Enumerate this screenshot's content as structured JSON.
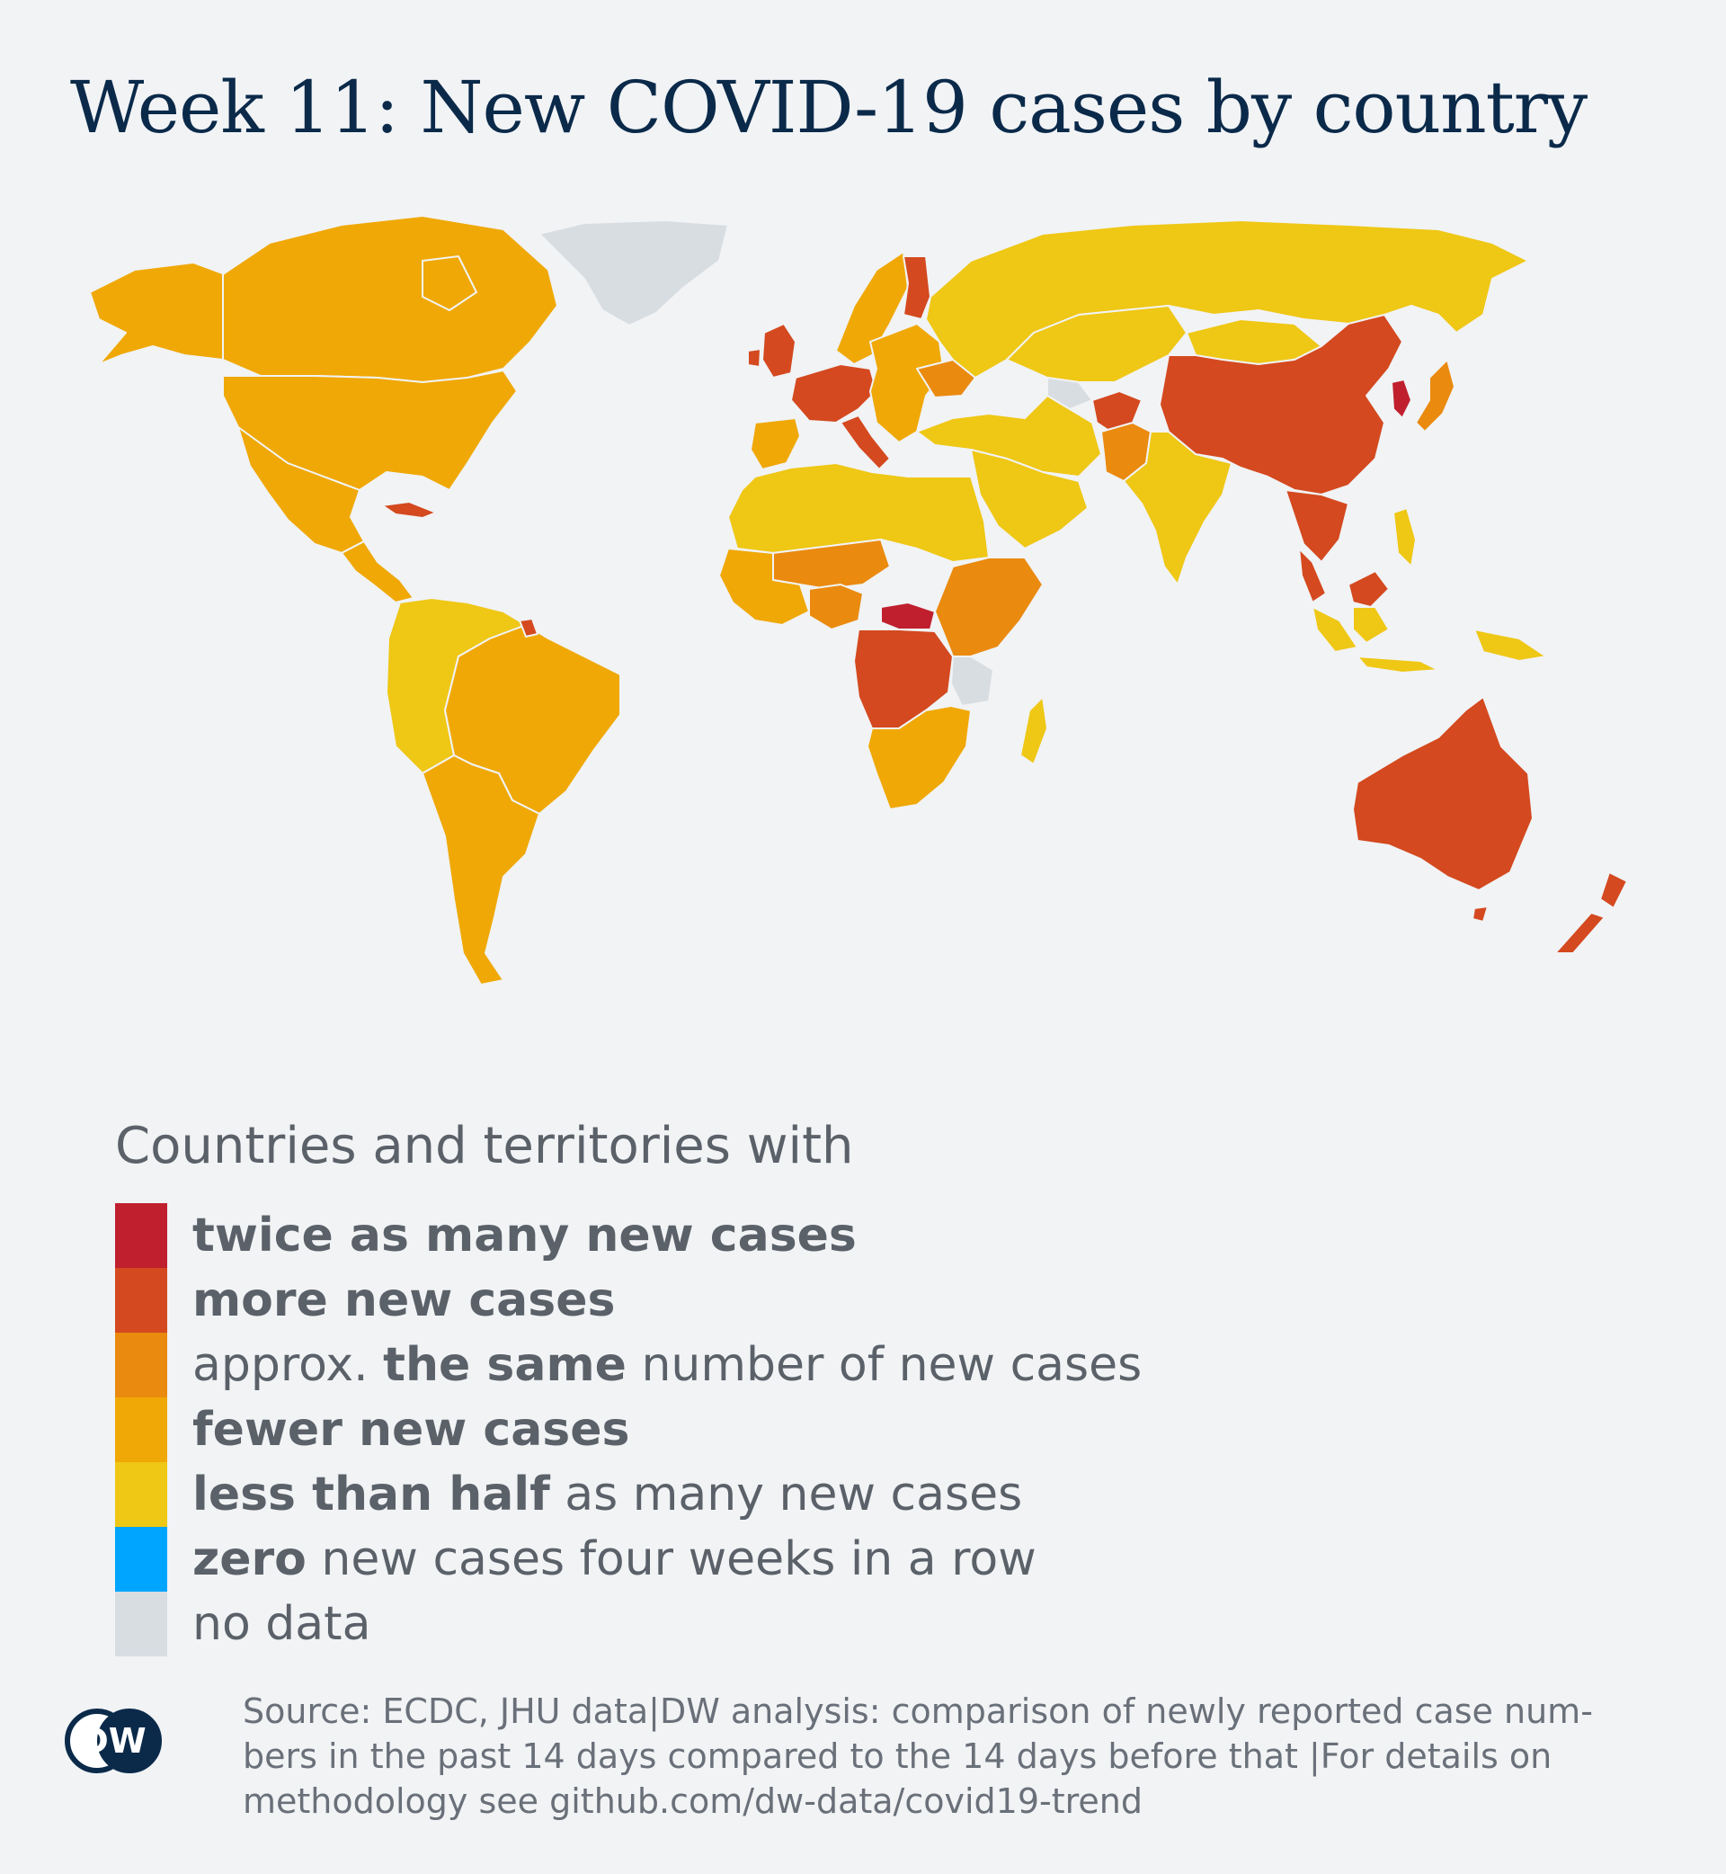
{
  "title": "Week 11: New COVID-19 cases by country",
  "colors": {
    "background": "#f1f3f5",
    "twice": "#c0202e",
    "more": "#d4491f",
    "same": "#ea8a0f",
    "fewer": "#f0a806",
    "less_half": "#efc715",
    "zero": "#00a5ff",
    "no_data": "#d8dde2",
    "border": "#f1f3f5",
    "title": "#0b2a4a"
  },
  "legend": {
    "heading": "Countries and territories with",
    "items": [
      {
        "key": "twice",
        "color": "#c0202e",
        "bold": "twice as many new cases",
        "rest": ""
      },
      {
        "key": "more",
        "color": "#d4491f",
        "bold": "more new cases",
        "rest": ""
      },
      {
        "key": "same",
        "color": "#ea8a0f",
        "pre": "approx. ",
        "bold": "the same",
        "rest": " number of new cases"
      },
      {
        "key": "fewer",
        "color": "#f0a806",
        "bold": "fewer new cases",
        "rest": ""
      },
      {
        "key": "less_half",
        "color": "#efc715",
        "bold": "less than half",
        "rest": " as many new cases"
      },
      {
        "key": "zero",
        "color": "#00a5ff",
        "bold": "zero",
        "rest": " new cases four weeks in a row"
      },
      {
        "key": "no_data",
        "color": "#d8dde2",
        "bold": "",
        "rest": "no data"
      }
    ]
  },
  "source": {
    "line1": "Source: ECDC, JHU data|DW analysis: comparison of newly reported case num-",
    "line2": "bers in the past 14 days compared to the 14 days before that |For details on",
    "line3": "methodology see github.com/dw-data/covid19-trend"
  },
  "logo": {
    "text": "DW"
  },
  "map": {
    "regions": [
      {
        "name": "canada",
        "category": "fewer"
      },
      {
        "name": "usa",
        "category": "fewer"
      },
      {
        "name": "alaska",
        "category": "fewer"
      },
      {
        "name": "mexico",
        "category": "fewer"
      },
      {
        "name": "central-america",
        "category": "fewer"
      },
      {
        "name": "cuba",
        "category": "more"
      },
      {
        "name": "greenland",
        "category": "no_data"
      },
      {
        "name": "brazil",
        "category": "fewer"
      },
      {
        "name": "andean-south-america",
        "category": "less_half"
      },
      {
        "name": "argentina-chile",
        "category": "fewer"
      },
      {
        "name": "french-guiana",
        "category": "more"
      },
      {
        "name": "iberia",
        "category": "fewer"
      },
      {
        "name": "western-europe",
        "category": "more"
      },
      {
        "name": "british-isles",
        "category": "more"
      },
      {
        "name": "italy",
        "category": "more"
      },
      {
        "name": "nordics",
        "category": "fewer"
      },
      {
        "name": "finland",
        "category": "more"
      },
      {
        "name": "eastern-europe",
        "category": "fewer"
      },
      {
        "name": "ukraine",
        "category": "same"
      },
      {
        "name": "russia",
        "category": "less_half"
      },
      {
        "name": "kazakhstan-central-asia",
        "category": "less_half"
      },
      {
        "name": "iran-iraq-turkey",
        "category": "less_half"
      },
      {
        "name": "arabia",
        "category": "less_half"
      },
      {
        "name": "turkmenistan",
        "category": "no_data"
      },
      {
        "name": "afghanistan",
        "category": "more"
      },
      {
        "name": "pakistan",
        "category": "same"
      },
      {
        "name": "india",
        "category": "less_half"
      },
      {
        "name": "china",
        "category": "more"
      },
      {
        "name": "mongolia",
        "category": "less_half"
      },
      {
        "name": "korea",
        "category": "twice"
      },
      {
        "name": "japan",
        "category": "same"
      },
      {
        "name": "southeast-asia",
        "category": "more"
      },
      {
        "name": "indonesia",
        "category": "less_half"
      },
      {
        "name": "borneo-malaysia",
        "category": "more"
      },
      {
        "name": "philippines",
        "category": "less_half"
      },
      {
        "name": "north-africa",
        "category": "less_half"
      },
      {
        "name": "sahel",
        "category": "same"
      },
      {
        "name": "west-africa",
        "category": "fewer"
      },
      {
        "name": "nigeria",
        "category": "same"
      },
      {
        "name": "central-african-republic",
        "category": "twice"
      },
      {
        "name": "congo-angola",
        "category": "more"
      },
      {
        "name": "east-africa",
        "category": "same"
      },
      {
        "name": "tanzania",
        "category": "no_data"
      },
      {
        "name": "southern-africa",
        "category": "fewer"
      },
      {
        "name": "madagascar",
        "category": "less_half"
      },
      {
        "name": "australia",
        "category": "more"
      },
      {
        "name": "new-zealand",
        "category": "more"
      },
      {
        "name": "papua",
        "category": "less_half"
      }
    ]
  }
}
